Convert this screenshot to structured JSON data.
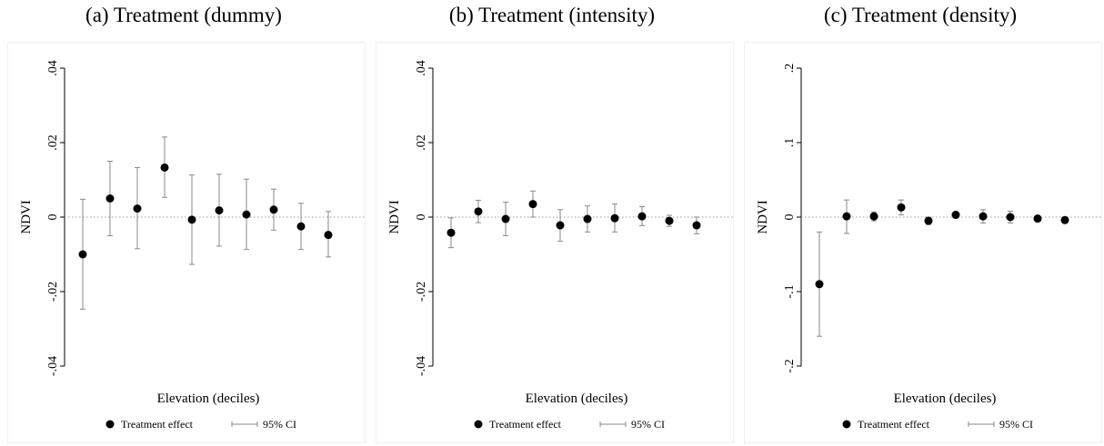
{
  "chart_data": [
    {
      "type": "scatter",
      "title": "(a) Treatment (dummy)",
      "xlabel": "Elevation (deciles)",
      "ylabel": "NDVI",
      "ylim": [
        -0.04,
        0.04
      ],
      "yticks": [
        ".04",
        ".02",
        "0",
        "-.02",
        "-.04"
      ],
      "ytick_values": [
        0.04,
        0.02,
        0,
        -0.02,
        -0.04
      ],
      "x": [
        1,
        2,
        3,
        4,
        5,
        6,
        7,
        8,
        9,
        10
      ],
      "series": [
        {
          "name": "Treatment effect",
          "values": [
            -0.01,
            0.005,
            0.0023,
            0.0133,
            -0.0007,
            0.0018,
            0.0007,
            0.002,
            -0.0025,
            -0.0048
          ]
        },
        {
          "name": "95% CI",
          "lower": [
            -0.0247,
            -0.005,
            -0.0085,
            0.0053,
            -0.0127,
            -0.0078,
            -0.0087,
            -0.0035,
            -0.0087,
            -0.0107
          ],
          "upper": [
            0.0048,
            0.015,
            0.0133,
            0.0215,
            0.0113,
            0.0115,
            0.0102,
            0.0075,
            0.0037,
            0.0015
          ]
        }
      ],
      "legend": [
        "Treatment effect",
        "95% CI"
      ],
      "legend_position": "bottom",
      "grid": false,
      "reference_line": 0
    },
    {
      "type": "scatter",
      "title": "(b) Treatment (intensity)",
      "xlabel": "Elevation (deciles)",
      "ylabel": "NDVI",
      "ylim": [
        -0.04,
        0.04
      ],
      "yticks": [
        ".04",
        ".02",
        "0",
        "-.02",
        "-.04"
      ],
      "ytick_values": [
        0.04,
        0.02,
        0,
        -0.02,
        -0.04
      ],
      "x": [
        1,
        2,
        3,
        4,
        5,
        6,
        7,
        8,
        9,
        10
      ],
      "series": [
        {
          "name": "Treatment effect",
          "values": [
            -0.0042,
            0.0015,
            -0.0005,
            0.0035,
            -0.0022,
            -0.0005,
            -0.0003,
            0.0002,
            -0.001,
            -0.0022
          ]
        },
        {
          "name": "95% CI",
          "lower": [
            -0.0082,
            -0.0015,
            -0.005,
            0.0,
            -0.0065,
            -0.004,
            -0.004,
            -0.0023,
            -0.0025,
            -0.0045
          ],
          "upper": [
            -0.0002,
            0.0045,
            0.004,
            0.007,
            0.002,
            0.003,
            0.0035,
            0.0028,
            0.0005,
            0.0
          ]
        }
      ],
      "legend": [
        "Treatment effect",
        "95% CI"
      ],
      "legend_position": "bottom",
      "grid": false,
      "reference_line": 0
    },
    {
      "type": "scatter",
      "title": "(c) Treatment (density)",
      "xlabel": "Elevation (deciles)",
      "ylabel": "NDVI",
      "ylim": [
        -0.2,
        0.2
      ],
      "yticks": [
        ".2",
        ".1",
        "0",
        "-.1",
        "-.2"
      ],
      "ytick_values": [
        0.2,
        0.1,
        0,
        -0.1,
        -0.2
      ],
      "x": [
        1,
        2,
        3,
        4,
        5,
        6,
        7,
        8,
        9,
        10
      ],
      "series": [
        {
          "name": "Treatment effect",
          "values": [
            -0.09,
            0.001,
            0.001,
            0.013,
            -0.005,
            0.003,
            0.001,
            0.0,
            -0.002,
            -0.004
          ]
        },
        {
          "name": "95% CI",
          "lower": [
            -0.16,
            -0.022,
            -0.005,
            0.003,
            -0.01,
            -0.001,
            -0.008,
            -0.008,
            -0.006,
            -0.008
          ],
          "upper": [
            -0.02,
            0.023,
            0.007,
            0.023,
            0.0,
            0.007,
            0.01,
            0.008,
            0.002,
            0.0
          ]
        }
      ],
      "legend": [
        "Treatment effect",
        "95% CI"
      ],
      "legend_position": "bottom",
      "grid": false,
      "reference_line": 0
    }
  ]
}
